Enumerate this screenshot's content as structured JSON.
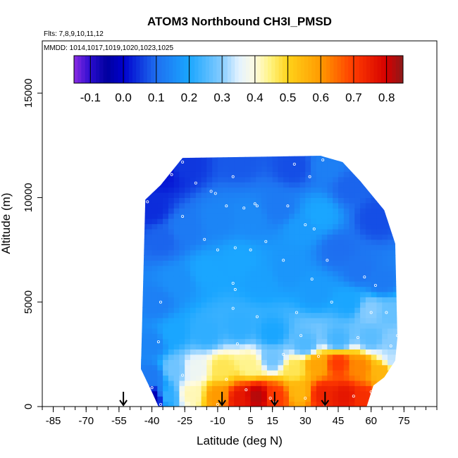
{
  "chart_data": {
    "type": "heatmap",
    "title": "ATOM3 Northbound CH3I_PMSD",
    "flights_label": "Flts: 7,8,9,10,11,12",
    "dates_label": "MMDD: 1014,1017,1019,1020,1023,1025",
    "xlabel": "Latitude (deg N)",
    "ylabel": "Altitude (m)",
    "xlim": [
      -90,
      90
    ],
    "ylim": [
      0,
      17500
    ],
    "x_ticks": [
      -85,
      -70,
      -55,
      -40,
      -25,
      -10,
      5,
      15,
      30,
      45,
      60,
      75
    ],
    "x_minor_step": 5,
    "y_ticks": [
      0,
      5000,
      10000,
      15000
    ],
    "colorbar": {
      "min": -0.15,
      "max": 0.85,
      "ticks": [
        "-0.1",
        "0.0",
        "0.1",
        "0.2",
        "0.3",
        "0.4",
        "0.5",
        "0.6",
        "0.7",
        "0.8"
      ],
      "tick_values": [
        -0.1,
        0.0,
        0.1,
        0.2,
        0.3,
        0.4,
        0.5,
        0.6,
        0.7,
        0.8
      ],
      "stops": [
        [
          -0.15,
          "#8a2be2"
        ],
        [
          -0.1,
          "#2a0ccf"
        ],
        [
          -0.05,
          "#00009e"
        ],
        [
          0.0,
          "#0000cd"
        ],
        [
          0.1,
          "#1e6ff0"
        ],
        [
          0.2,
          "#1aa6ff"
        ],
        [
          0.3,
          "#86ccff"
        ],
        [
          0.35,
          "#e2f2ff"
        ],
        [
          0.4,
          "#fffbe0"
        ],
        [
          0.45,
          "#fff27a"
        ],
        [
          0.5,
          "#ffd21a"
        ],
        [
          0.6,
          "#ff9a00"
        ],
        [
          0.7,
          "#ff3a00"
        ],
        [
          0.8,
          "#d40000"
        ],
        [
          0.85,
          "#8b1a1a"
        ]
      ]
    },
    "arrows_lat": [
      -53,
      -8,
      16,
      39
    ],
    "domain_outline": [
      [
        -45,
        1800
      ],
      [
        -43,
        9900
      ],
      [
        -36,
        10600
      ],
      [
        -26,
        11900
      ],
      [
        37,
        12000
      ],
      [
        47,
        11700
      ],
      [
        55,
        10800
      ],
      [
        66,
        9400
      ],
      [
        71,
        7800
      ],
      [
        72,
        3300
      ],
      [
        71,
        2200
      ],
      [
        66,
        1400
      ],
      [
        61,
        1000
      ],
      [
        58,
        0
      ],
      [
        -37,
        0
      ],
      [
        -40,
        700
      ],
      [
        -45,
        1800
      ]
    ],
    "field_anchors": [
      {
        "lat": -42,
        "alt": 11500,
        "value": 0.03
      },
      {
        "lat": -40,
        "alt": 9500,
        "value": 0.04
      },
      {
        "lat": -35,
        "alt": 11200,
        "value": 0.02
      },
      {
        "lat": -25,
        "alt": 11600,
        "value": 0.05
      },
      {
        "lat": 0,
        "alt": 11800,
        "value": 0.08
      },
      {
        "lat": 25,
        "alt": 11500,
        "value": 0.07
      },
      {
        "lat": 40,
        "alt": 11500,
        "value": 0.13
      },
      {
        "lat": 50,
        "alt": 10500,
        "value": 0.09
      },
      {
        "lat": 62,
        "alt": 9000,
        "value": 0.07
      },
      {
        "lat": -35,
        "alt": 8000,
        "value": 0.09
      },
      {
        "lat": -25,
        "alt": 8500,
        "value": 0.12
      },
      {
        "lat": -10,
        "alt": 9000,
        "value": 0.14
      },
      {
        "lat": 5,
        "alt": 9000,
        "value": 0.15
      },
      {
        "lat": 18,
        "alt": 9500,
        "value": 0.12
      },
      {
        "lat": 28,
        "alt": 8500,
        "value": 0.18
      },
      {
        "lat": 37,
        "alt": 9200,
        "value": 0.2
      },
      {
        "lat": 45,
        "alt": 7500,
        "value": 0.1
      },
      {
        "lat": 55,
        "alt": 6500,
        "value": 0.11
      },
      {
        "lat": 65,
        "alt": 6000,
        "value": 0.12
      },
      {
        "lat": -38,
        "alt": 5000,
        "value": 0.13
      },
      {
        "lat": -28,
        "alt": 6000,
        "value": 0.16
      },
      {
        "lat": -15,
        "alt": 6500,
        "value": 0.2
      },
      {
        "lat": 0,
        "alt": 7000,
        "value": 0.2
      },
      {
        "lat": 10,
        "alt": 6000,
        "value": 0.19
      },
      {
        "lat": 22,
        "alt": 6500,
        "value": 0.17
      },
      {
        "lat": 35,
        "alt": 5500,
        "value": 0.18
      },
      {
        "lat": 50,
        "alt": 5000,
        "value": 0.2
      },
      {
        "lat": 60,
        "alt": 4600,
        "value": 0.3
      },
      {
        "lat": 68,
        "alt": 4500,
        "value": 0.27
      },
      {
        "lat": -40,
        "alt": 3000,
        "value": 0.14
      },
      {
        "lat": -30,
        "alt": 3500,
        "value": 0.2
      },
      {
        "lat": -15,
        "alt": 3500,
        "value": 0.22
      },
      {
        "lat": 0,
        "alt": 3800,
        "value": 0.22
      },
      {
        "lat": 15,
        "alt": 3500,
        "value": 0.2
      },
      {
        "lat": 30,
        "alt": 3000,
        "value": 0.25
      },
      {
        "lat": 45,
        "alt": 3200,
        "value": 0.24
      },
      {
        "lat": 60,
        "alt": 3300,
        "value": 0.26
      },
      {
        "lat": 70,
        "alt": 3000,
        "value": 0.3
      },
      {
        "lat": -40,
        "alt": 1500,
        "value": 0.12
      },
      {
        "lat": -30,
        "alt": 1800,
        "value": 0.28
      },
      {
        "lat": -20,
        "alt": 1800,
        "value": 0.37
      },
      {
        "lat": -8,
        "alt": 1800,
        "value": 0.47
      },
      {
        "lat": 5,
        "alt": 2000,
        "value": 0.44
      },
      {
        "lat": 15,
        "alt": 2300,
        "value": 0.28
      },
      {
        "lat": 25,
        "alt": 1800,
        "value": 0.47
      },
      {
        "lat": 35,
        "alt": 2000,
        "value": 0.58
      },
      {
        "lat": 45,
        "alt": 2100,
        "value": 0.7
      },
      {
        "lat": 55,
        "alt": 1900,
        "value": 0.62
      },
      {
        "lat": 65,
        "alt": 1700,
        "value": 0.55
      },
      {
        "lat": 70,
        "alt": 2300,
        "value": 0.33
      },
      {
        "lat": -39,
        "alt": 400,
        "value": -0.03
      },
      {
        "lat": -33,
        "alt": 500,
        "value": 0.22
      },
      {
        "lat": -22,
        "alt": 600,
        "value": 0.42
      },
      {
        "lat": -10,
        "alt": 500,
        "value": 0.6
      },
      {
        "lat": 0,
        "alt": 400,
        "value": 0.76
      },
      {
        "lat": 8,
        "alt": 500,
        "value": 0.82
      },
      {
        "lat": 17,
        "alt": 500,
        "value": 0.7
      },
      {
        "lat": 27,
        "alt": 700,
        "value": 0.55
      },
      {
        "lat": 38,
        "alt": 600,
        "value": 0.74
      },
      {
        "lat": 48,
        "alt": 500,
        "value": 0.76
      },
      {
        "lat": 56,
        "alt": 400,
        "value": 0.72
      }
    ],
    "sample_points": [
      [
        -37,
        11500
      ],
      [
        -31,
        11100
      ],
      [
        -26,
        11700
      ],
      [
        -20,
        10700
      ],
      [
        -13,
        10300
      ],
      [
        -3,
        11000
      ],
      [
        25,
        11600
      ],
      [
        32,
        11000
      ],
      [
        38,
        11800
      ],
      [
        -44,
        10000
      ],
      [
        -42,
        9800
      ],
      [
        -26,
        9100
      ],
      [
        -11,
        10200
      ],
      [
        -6,
        9600
      ],
      [
        2,
        9500
      ],
      [
        7,
        9700
      ],
      [
        8,
        9600
      ],
      [
        22,
        9600
      ],
      [
        30,
        8700
      ],
      [
        34,
        8500
      ],
      [
        -16,
        8000
      ],
      [
        -10,
        7500
      ],
      [
        -2,
        7600
      ],
      [
        5,
        7500
      ],
      [
        12,
        7900
      ],
      [
        20,
        7000
      ],
      [
        40,
        7000
      ],
      [
        57,
        6200
      ],
      [
        62,
        5800
      ],
      [
        -3,
        5900
      ],
      [
        -2,
        5600
      ],
      [
        -3,
        4700
      ],
      [
        8,
        4300
      ],
      [
        26,
        4500
      ],
      [
        33,
        6100
      ],
      [
        42,
        5000
      ],
      [
        60,
        4500
      ],
      [
        67,
        4500
      ],
      [
        -36,
        5000
      ],
      [
        -37,
        3100
      ],
      [
        -1,
        3000
      ],
      [
        20,
        2500
      ],
      [
        28,
        3400
      ],
      [
        36,
        2400
      ],
      [
        54,
        3300
      ],
      [
        69,
        2900
      ],
      [
        72,
        3400
      ],
      [
        -40,
        900
      ],
      [
        -26,
        1500
      ],
      [
        -6,
        1300
      ],
      [
        3,
        800
      ],
      [
        14,
        400
      ],
      [
        30,
        400
      ],
      [
        52,
        500
      ],
      [
        60,
        700
      ],
      [
        66,
        900
      ],
      [
        -36,
        100
      ],
      [
        -10,
        100
      ],
      [
        16,
        200
      ],
      [
        39,
        100
      ]
    ]
  }
}
